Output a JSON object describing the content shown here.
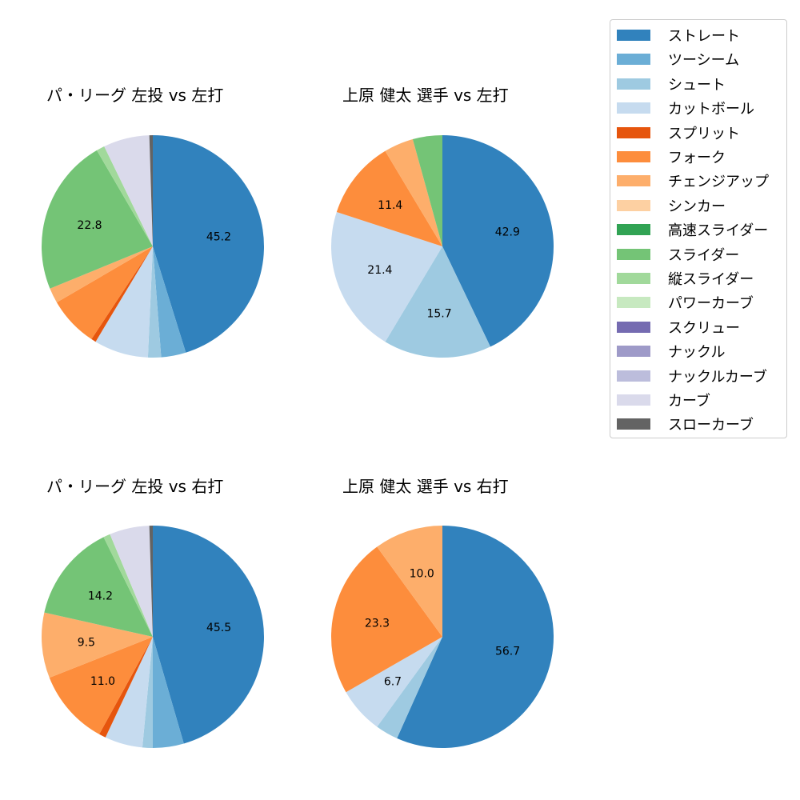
{
  "legend": {
    "items": [
      {
        "label": "ストレート",
        "color": "#3182bd"
      },
      {
        "label": "ツーシーム",
        "color": "#6baed6"
      },
      {
        "label": "シュート",
        "color": "#9ecae1"
      },
      {
        "label": "カットボール",
        "color": "#c6dbef"
      },
      {
        "label": "スプリット",
        "color": "#e6550d"
      },
      {
        "label": "フォーク",
        "color": "#fd8d3c"
      },
      {
        "label": "チェンジアップ",
        "color": "#fdae6b"
      },
      {
        "label": "シンカー",
        "color": "#fdd0a2"
      },
      {
        "label": "高速スライダー",
        "color": "#31a354"
      },
      {
        "label": "スライダー",
        "color": "#74c476"
      },
      {
        "label": "縦スライダー",
        "color": "#a1d99b"
      },
      {
        "label": "パワーカーブ",
        "color": "#c7e9c0"
      },
      {
        "label": "スクリュー",
        "color": "#756bb1"
      },
      {
        "label": "ナックル",
        "color": "#9e9ac8"
      },
      {
        "label": "ナックルカーブ",
        "color": "#bcbddc"
      },
      {
        "label": "カーブ",
        "color": "#dadaeb"
      },
      {
        "label": "スローカーブ",
        "color": "#636363"
      }
    ]
  },
  "chart_data": [
    {
      "type": "pie",
      "title": "パ・リーグ 左投 vs 左打",
      "start_angle": 90,
      "direction": "clockwise",
      "categories": [
        "ストレート",
        "ツーシーム",
        "シュート",
        "カットボール",
        "スプリット",
        "フォーク",
        "チェンジアップ",
        "スライダー",
        "縦スライダー",
        "カーブ",
        "スローカーブ"
      ],
      "values": [
        45.2,
        3.6,
        1.9,
        7.9,
        0.7,
        7.3,
        2.2,
        22.8,
        1.2,
        6.7,
        0.5
      ],
      "labels_shown": [
        "45.2",
        "22.8"
      ]
    },
    {
      "type": "pie",
      "title": "上原 健太 選手 vs 左打",
      "start_angle": 90,
      "direction": "clockwise",
      "categories": [
        "ストレート",
        "シュート",
        "カットボール",
        "フォーク",
        "チェンジアップ",
        "スライダー"
      ],
      "values": [
        42.9,
        15.7,
        21.4,
        11.4,
        4.3,
        4.3
      ],
      "labels_shown": [
        "42.9",
        "15.7",
        "21.4",
        "11.4"
      ]
    },
    {
      "type": "pie",
      "title": "パ・リーグ 左投 vs 右打",
      "start_angle": 90,
      "direction": "clockwise",
      "categories": [
        "ストレート",
        "ツーシーム",
        "シュート",
        "カットボール",
        "スプリット",
        "フォーク",
        "チェンジアップ",
        "スライダー",
        "縦スライダー",
        "カーブ",
        "スローカーブ"
      ],
      "values": [
        45.5,
        4.5,
        1.5,
        5.5,
        1.0,
        11.0,
        9.5,
        14.2,
        1.0,
        5.8,
        0.5
      ],
      "labels_shown": [
        "45.5",
        "11.0",
        "9.5",
        "14.2"
      ]
    },
    {
      "type": "pie",
      "title": "上原 健太 選手 vs 右打",
      "start_angle": 90,
      "direction": "clockwise",
      "categories": [
        "ストレート",
        "シュート",
        "カットボール",
        "フォーク",
        "チェンジアップ"
      ],
      "values": [
        56.7,
        3.3,
        6.7,
        23.3,
        10.0
      ],
      "labels_shown": [
        "56.7",
        "6.7",
        "23.3",
        "10.0"
      ]
    }
  ]
}
